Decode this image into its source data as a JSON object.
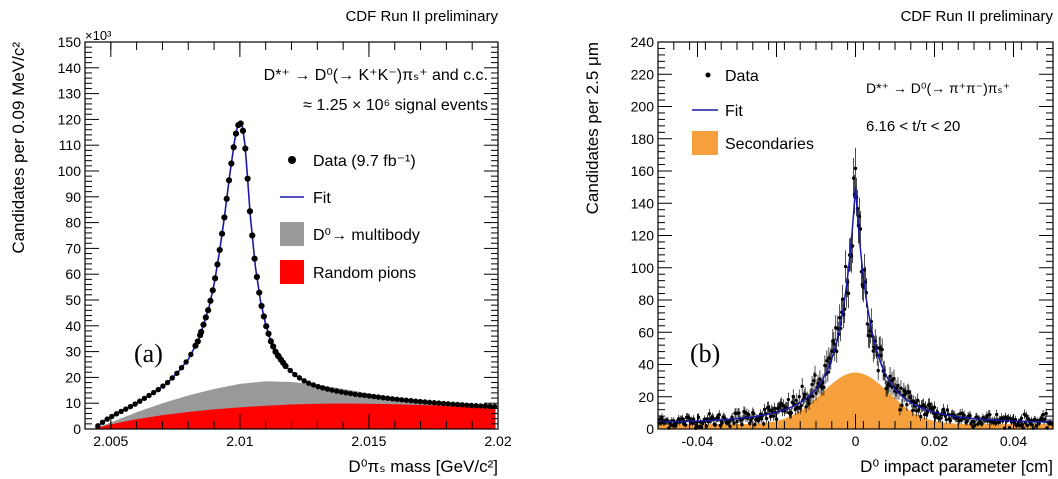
{
  "chart_data": [
    {
      "id": "a",
      "type": "line",
      "header": "CDF Run II preliminary",
      "panel_label": "(a)",
      "xlabel": "D⁰πₛ mass [GeV/c²]",
      "ylabel": "Candidates per 0.09 MeV/c²",
      "y_multiplier": "×10³",
      "xlim": [
        2.004,
        2.02
      ],
      "ylim": [
        0,
        150
      ],
      "x_ticks": [
        2.005,
        2.01,
        2.015,
        2.02
      ],
      "x_tick_labels": [
        "2.005",
        "2.01",
        "2.015",
        "2.02"
      ],
      "y_ticks": [
        0,
        10,
        20,
        30,
        40,
        50,
        60,
        70,
        80,
        90,
        100,
        110,
        120,
        130,
        140,
        150
      ],
      "y_tick_labels": [
        "0",
        "10",
        "20",
        "30",
        "40",
        "50",
        "60",
        "70",
        "80",
        "90",
        "100",
        "110",
        "120",
        "130",
        "140",
        "150"
      ],
      "annotations": [
        "D*⁺ → D⁰(→ K⁺K⁻)πₛ⁺ and c.c.",
        "≈ 1.25 × 10⁶ signal events"
      ],
      "legend": [
        {
          "label": "Data (9.7 fb⁻¹)",
          "kind": "marker",
          "color": "#000000"
        },
        {
          "label": "Fit",
          "kind": "line",
          "color": "#1a1aa8"
        },
        {
          "label": "D⁰→ multibody",
          "kind": "fill",
          "color": "#999999"
        },
        {
          "label": "Random pions",
          "kind": "fill",
          "color": "#ff0000"
        }
      ],
      "fit_curve": {
        "x": [
          2.0044,
          2.0048,
          2.0052,
          2.0056,
          2.006,
          2.0064,
          2.0068,
          2.0072,
          2.0076,
          2.008,
          2.0084,
          2.0088,
          2.009,
          2.0092,
          2.0094,
          2.0096,
          2.0098,
          2.0099,
          2.01,
          2.0101,
          2.0102,
          2.0103,
          2.0104,
          2.0106,
          2.0108,
          2.011,
          2.0112,
          2.0114,
          2.0118,
          2.0122,
          2.0126,
          2.013,
          2.0135,
          2.014,
          2.0145,
          2.015,
          2.016,
          2.017,
          2.018,
          2.019,
          2.0199
        ],
        "y": [
          0.5,
          3.5,
          5.8,
          7.8,
          10.0,
          12.5,
          15.0,
          18.0,
          22.0,
          27.0,
          34.5,
          47.0,
          56.0,
          68.0,
          82.0,
          98.0,
          112.0,
          117.0,
          119.0,
          117.0,
          110.0,
          97.0,
          83.0,
          63.0,
          49.5,
          40.5,
          34.0,
          29.5,
          24.0,
          20.5,
          18.0,
          16.5,
          15.2,
          14.2,
          13.4,
          12.8,
          11.6,
          10.6,
          9.8,
          9.1,
          8.7
        ]
      },
      "multibody_top": {
        "x": [
          2.0044,
          2.005,
          2.006,
          2.007,
          2.008,
          2.009,
          2.01,
          2.011,
          2.012,
          2.013,
          2.014,
          2.015,
          2.016,
          2.017,
          2.018,
          2.019,
          2.0199
        ],
        "y": [
          0.3,
          2.5,
          6.5,
          10.0,
          13.0,
          15.5,
          17.5,
          18.5,
          18.2,
          17.2,
          15.5,
          13.8,
          12.2,
          11.0,
          10.0,
          9.2,
          8.7
        ]
      },
      "random_pions_top": {
        "x": [
          2.0044,
          2.005,
          2.006,
          2.007,
          2.008,
          2.009,
          2.01,
          2.011,
          2.012,
          2.013,
          2.014,
          2.015,
          2.016,
          2.017,
          2.018,
          2.019,
          2.0199
        ],
        "y": [
          0.3,
          1.8,
          3.8,
          5.4,
          6.6,
          7.6,
          8.4,
          9.0,
          9.5,
          9.8,
          9.9,
          9.8,
          9.6,
          9.3,
          9.0,
          8.6,
          8.3
        ]
      }
    },
    {
      "id": "b",
      "type": "scatter",
      "header": "CDF Run II preliminary",
      "panel_label": "(b)",
      "xlabel": "D⁰ impact parameter [cm]",
      "ylabel": "Candidates per 2.5 μm",
      "xlim": [
        -0.05,
        0.05
      ],
      "ylim": [
        0,
        240
      ],
      "x_ticks": [
        -0.04,
        -0.02,
        0,
        0.02,
        0.04
      ],
      "x_tick_labels": [
        "-0.04",
        "-0.02",
        "0",
        "0.02",
        "0.04"
      ],
      "y_ticks": [
        0,
        20,
        40,
        60,
        80,
        100,
        120,
        140,
        160,
        180,
        200,
        220,
        240
      ],
      "y_tick_labels": [
        "0",
        "20",
        "40",
        "60",
        "80",
        "100",
        "120",
        "140",
        "160",
        "180",
        "200",
        "220",
        "240"
      ],
      "annotations": [
        "D*⁺ → D⁰(→ π⁺π⁻)πₛ⁺",
        "6.16 < t/τ < 20"
      ],
      "legend": [
        {
          "label": "Data",
          "kind": "marker",
          "color": "#000000"
        },
        {
          "label": "Fit",
          "kind": "line",
          "color": "#1a1aa8"
        },
        {
          "label": "Secondaries",
          "kind": "fill",
          "color": "#f5a03c"
        }
      ],
      "fit_peak": 150,
      "fit_tail_at_edge": 5,
      "secondaries_peak": 35,
      "secondaries_tail_at_edge": 3,
      "data_points_approx": "dense points following the fit with statistical scatter, error bars larger near the peak"
    }
  ],
  "colors": {
    "fit": "#1a1aa8",
    "multibody": "#999999",
    "random_pions": "#ff0000",
    "secondaries": "#f5a03c",
    "data": "#000000"
  }
}
